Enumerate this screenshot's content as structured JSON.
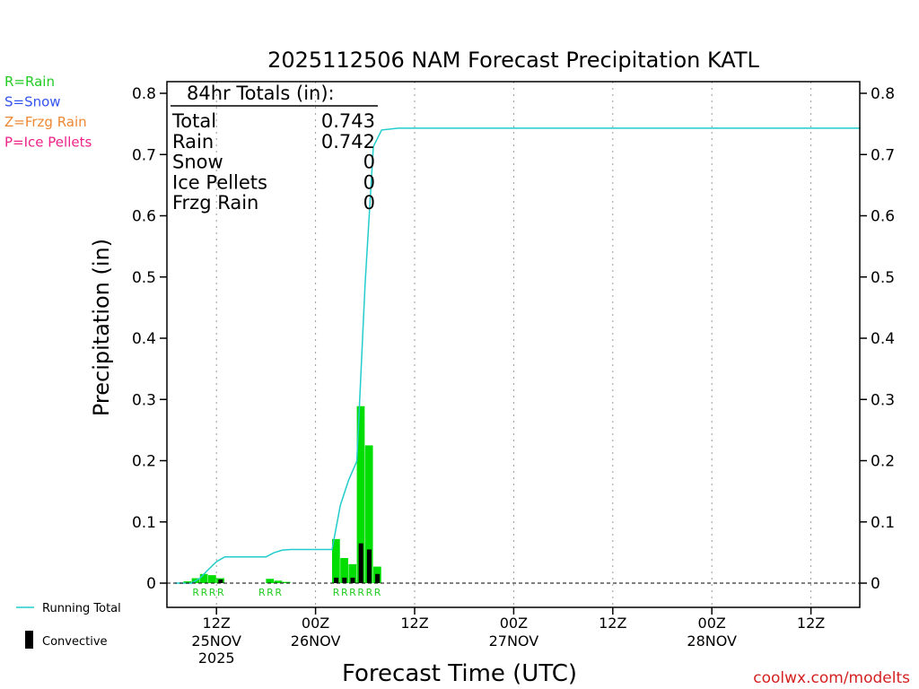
{
  "chart_data": {
    "type": "bar",
    "title": "2025112506 NAM Forecast Precipitation KATL",
    "xlabel": "Forecast Time (UTC)",
    "ylabel": "Precipitation (in)",
    "ylim": [
      0,
      0.82
    ],
    "yticks": [
      0,
      0.1,
      0.2,
      0.3,
      0.4,
      0.5,
      0.6,
      0.7,
      0.8
    ],
    "ytick_labels": [
      "0",
      "0.1",
      "0.2",
      "0.3",
      "0.4",
      "0.5",
      "0.6",
      "0.7",
      "0.8"
    ],
    "x_units": "hours since 2025-11-25 06Z",
    "xlim": [
      0,
      84
    ],
    "grid_x": true,
    "xticks": [
      {
        "hour": 6,
        "label": "12Z",
        "date": "25NOV",
        "year": "2025"
      },
      {
        "hour": 18,
        "label": "00Z",
        "date": "26NOV",
        "year": ""
      },
      {
        "hour": 30,
        "label": "12Z",
        "date": "",
        "year": ""
      },
      {
        "hour": 42,
        "label": "00Z",
        "date": "27NOV",
        "year": ""
      },
      {
        "hour": 54,
        "label": "12Z",
        "date": "",
        "year": ""
      },
      {
        "hour": 66,
        "label": "00Z",
        "date": "28NOV",
        "year": ""
      },
      {
        "hour": 78,
        "label": "12Z",
        "date": "",
        "year": ""
      }
    ],
    "legend_top": [
      {
        "text": "R=Rain",
        "color": "#22cc22"
      },
      {
        "text": "S=Snow",
        "color": "#3355ee"
      },
      {
        "text": "Z=Frzg Rain",
        "color": "#ee8833"
      },
      {
        "text": "P=Ice Pellets",
        "color": "#ee2288"
      }
    ],
    "legend_bottom": {
      "running_total": "Running Total",
      "convective": "Convective"
    },
    "totals": {
      "heading": "84hr Totals (in):",
      "rows": [
        {
          "label": "Total",
          "value": "0.743"
        },
        {
          "label": "Rain",
          "value": "0.742"
        },
        {
          "label": "Snow",
          "value": "0"
        },
        {
          "label": "Ice Pellets",
          "value": "0"
        },
        {
          "label": "Frzg Rain",
          "value": "0"
        }
      ]
    },
    "series": [
      {
        "name": "Precipitation",
        "color": "#00dd00",
        "points": [
          {
            "hour": 3,
            "value": 0.003
          },
          {
            "hour": 4,
            "value": 0.008
          },
          {
            "hour": 5,
            "value": 0.015
          },
          {
            "hour": 6,
            "value": 0.013
          },
          {
            "hour": 7,
            "value": 0.008
          },
          {
            "hour": 13,
            "value": 0.007
          },
          {
            "hour": 14,
            "value": 0.004
          },
          {
            "hour": 15,
            "value": 0.002
          },
          {
            "hour": 21,
            "value": 0.072
          },
          {
            "hour": 22,
            "value": 0.041
          },
          {
            "hour": 23,
            "value": 0.031
          },
          {
            "hour": 24,
            "value": 0.289
          },
          {
            "hour": 25,
            "value": 0.225
          },
          {
            "hour": 26,
            "value": 0.027
          }
        ]
      },
      {
        "name": "Convective",
        "color": "#000000",
        "points": [
          {
            "hour": 7,
            "value": 0.006
          },
          {
            "hour": 21,
            "value": 0.009
          },
          {
            "hour": 22,
            "value": 0.009
          },
          {
            "hour": 23,
            "value": 0.009
          },
          {
            "hour": 24,
            "value": 0.065
          },
          {
            "hour": 25,
            "value": 0.055
          },
          {
            "hour": 26,
            "value": 0.015
          }
        ]
      },
      {
        "name": "Running Total",
        "color": "#22cccc",
        "type": "line",
        "points": [
          {
            "hour": 1,
            "value": 0
          },
          {
            "hour": 3,
            "value": 0
          },
          {
            "hour": 4,
            "value": 0.008
          },
          {
            "hour": 5,
            "value": 0.022
          },
          {
            "hour": 6,
            "value": 0.035
          },
          {
            "hour": 7,
            "value": 0.043
          },
          {
            "hour": 12,
            "value": 0.043
          },
          {
            "hour": 13,
            "value": 0.05
          },
          {
            "hour": 14,
            "value": 0.054
          },
          {
            "hour": 15,
            "value": 0.055
          },
          {
            "hour": 20,
            "value": 0.055
          },
          {
            "hour": 21,
            "value": 0.127
          },
          {
            "hour": 22,
            "value": 0.168
          },
          {
            "hour": 23,
            "value": 0.199
          },
          {
            "hour": 24,
            "value": 0.488
          },
          {
            "hour": 25,
            "value": 0.713
          },
          {
            "hour": 26,
            "value": 0.74
          },
          {
            "hour": 28,
            "value": 0.743
          },
          {
            "hour": 84,
            "value": 0.743
          }
        ]
      }
    ],
    "ptype_labels": [
      {
        "hour": 3,
        "text": "R"
      },
      {
        "hour": 4,
        "text": "R"
      },
      {
        "hour": 5,
        "text": "R"
      },
      {
        "hour": 6,
        "text": "R"
      },
      {
        "hour": 11,
        "text": "R"
      },
      {
        "hour": 12,
        "text": "R"
      },
      {
        "hour": 13,
        "text": "R"
      },
      {
        "hour": 20,
        "text": "R"
      },
      {
        "hour": 21,
        "text": "R"
      },
      {
        "hour": 22,
        "text": "R"
      },
      {
        "hour": 23,
        "text": "R"
      },
      {
        "hour": 24,
        "text": "R"
      },
      {
        "hour": 25,
        "text": "R"
      }
    ],
    "credit": "coolwx.com/modelts"
  }
}
